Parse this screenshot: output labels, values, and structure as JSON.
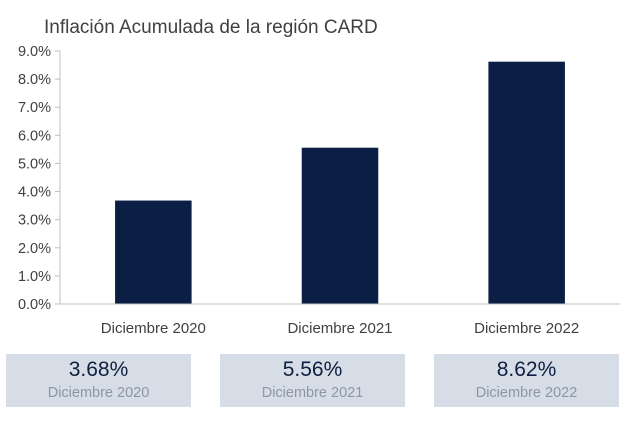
{
  "chart_data": {
    "type": "bar",
    "title": "Inflación Acumulada de la región CARD",
    "categories": [
      "Diciembre 2020",
      "Diciembre 2021",
      "Diciembre 2022"
    ],
    "values": [
      3.68,
      5.56,
      8.62
    ],
    "ylim": [
      0,
      9
    ],
    "yticks": [
      "0.0%",
      "1.0%",
      "2.0%",
      "3.0%",
      "4.0%",
      "5.0%",
      "6.0%",
      "7.0%",
      "8.0%",
      "9.0%"
    ],
    "bar_color": "#0b1f44",
    "grid": false
  },
  "cards": [
    {
      "value": "3.68%",
      "label": "Diciembre 2020"
    },
    {
      "value": "5.56%",
      "label": "Diciembre 2021"
    },
    {
      "value": "8.62%",
      "label": "Diciembre 2022"
    }
  ]
}
